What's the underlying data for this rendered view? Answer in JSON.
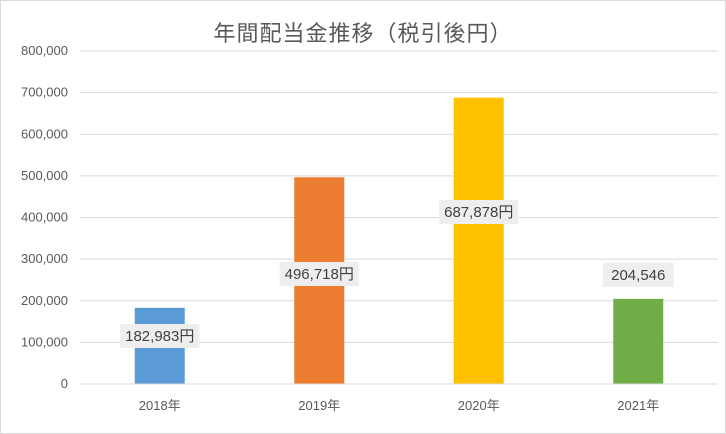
{
  "chart_data": {
    "type": "bar",
    "title": "年間配当金推移（税引後円）",
    "xlabel": "",
    "ylabel": "",
    "categories": [
      "2018年",
      "2019年",
      "2020年",
      "2021年"
    ],
    "values": [
      182983,
      496718,
      687878,
      204546
    ],
    "data_labels": [
      "182,983円",
      "496,718円",
      "687,878円",
      "204,546"
    ],
    "colors": [
      "#5b9bd5",
      "#ed7d31",
      "#ffc000",
      "#70ad47"
    ],
    "ylim": [
      0,
      800000
    ],
    "yticks": [
      "0",
      "100,000",
      "200,000",
      "300,000",
      "400,000",
      "500,000",
      "600,000",
      "700,000",
      "800,000"
    ],
    "grid": true,
    "legend": "none"
  }
}
